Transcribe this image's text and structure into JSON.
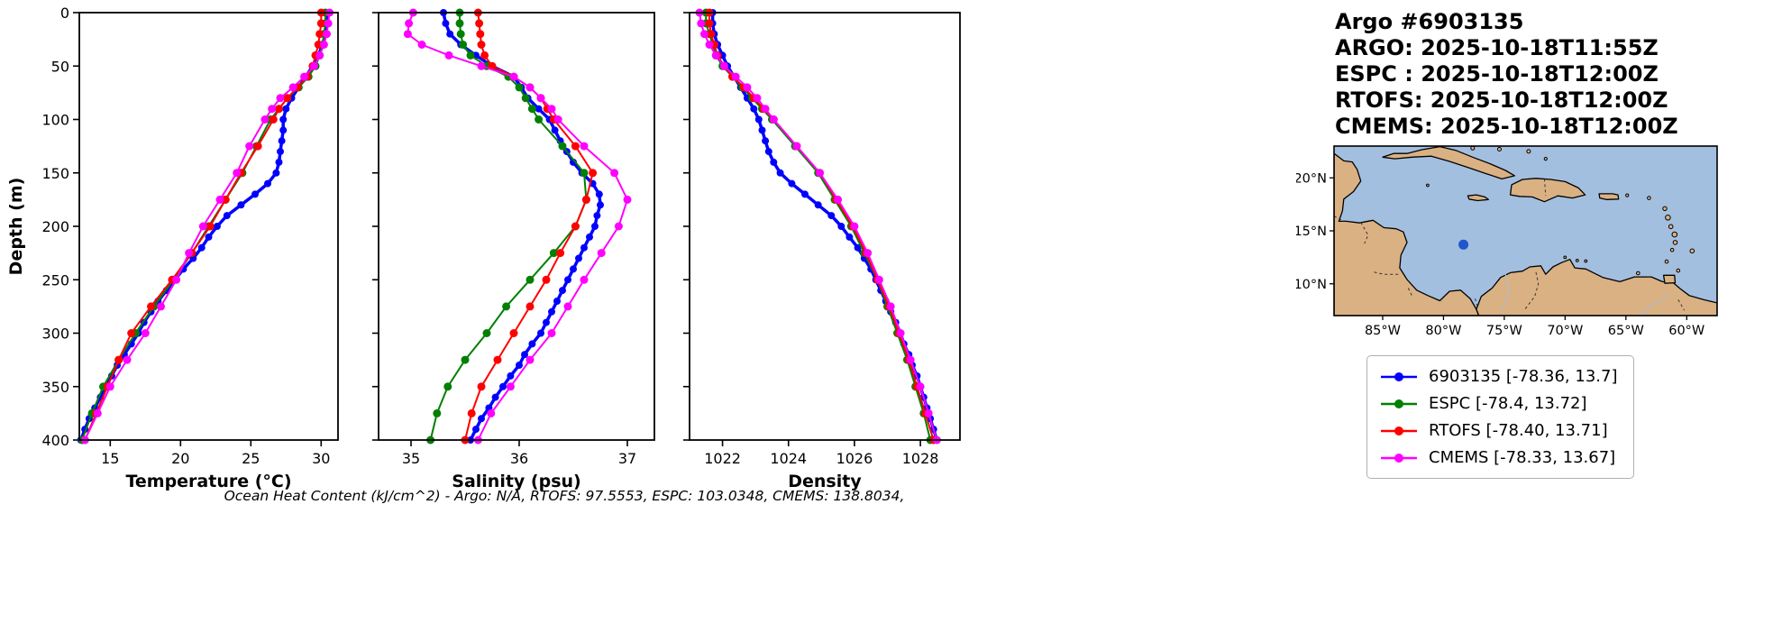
{
  "info": {
    "lines": [
      "Argo #6903135",
      "ARGO: 2025-10-18T11:55Z",
      "ESPC : 2025-10-18T12:00Z",
      "RTOFS: 2025-10-18T12:00Z",
      "CMEMS: 2025-10-18T12:00Z"
    ]
  },
  "footer": "Ocean Heat Content (kJ/cm^2) - Argo: N/A,  RTOFS: 97.5553,  ESPC: 103.0348,  CMEMS: 138.8034,",
  "legend": {
    "items": [
      {
        "label": "6903135 [-78.36, 13.7]",
        "color": "#0000ff"
      },
      {
        "label": "ESPC [-78.4, 13.72]",
        "color": "#008000"
      },
      {
        "label": "RTOFS [-78.40, 13.71]",
        "color": "#ff0000"
      },
      {
        "label": "CMEMS [-78.33, 13.67]",
        "color": "#ff00ff"
      }
    ]
  },
  "map": {
    "colors": {
      "ocean": "#a3bfe0",
      "land": "#dab183",
      "coast": "#000000",
      "point": "#2255cc"
    },
    "xticks": [
      {
        "label": "85°W",
        "lon": 85
      },
      {
        "label": "80°W",
        "lon": 80
      },
      {
        "label": "75°W",
        "lon": 75
      },
      {
        "label": "70°W",
        "lon": 70
      },
      {
        "label": "65°W",
        "lon": 65
      },
      {
        "label": "60°W",
        "lon": 60
      }
    ],
    "yticks": [
      {
        "label": "20°N",
        "lat": 20
      },
      {
        "label": "15°N",
        "lat": 15
      },
      {
        "label": "10°N",
        "lat": 10
      }
    ],
    "point": {
      "lon": -78.36,
      "lat": 13.7
    }
  },
  "chart_data": [
    {
      "type": "line",
      "xlabel": "Temperature (°C)",
      "ylabel": "Depth (m)",
      "xlim": [
        12.8,
        31.2
      ],
      "ylim": [
        0,
        400
      ],
      "y_inverted": true,
      "xticks": [
        15,
        20,
        25,
        30
      ],
      "yticks": [
        0,
        50,
        100,
        150,
        200,
        250,
        300,
        350,
        400
      ],
      "series": [
        {
          "name": "6903135",
          "color": "#0000ff",
          "linewidth": 3.5,
          "markersize": 4,
          "depths": [
            0,
            10,
            20,
            30,
            40,
            50,
            60,
            70,
            80,
            90,
            100,
            110,
            120,
            130,
            140,
            150,
            160,
            170,
            180,
            190,
            200,
            210,
            220,
            230,
            240,
            250,
            260,
            270,
            280,
            290,
            300,
            310,
            320,
            330,
            340,
            350,
            360,
            370,
            380,
            390,
            400
          ],
          "values": [
            30.4,
            30.4,
            30.3,
            30.1,
            29.8,
            29.4,
            28.9,
            28.4,
            27.9,
            27.5,
            27.3,
            27.3,
            27.2,
            27.1,
            27.0,
            26.8,
            26.2,
            25.3,
            24.3,
            23.3,
            22.6,
            22.0,
            21.5,
            20.9,
            20.2,
            19.6,
            19.0,
            18.4,
            17.9,
            17.4,
            17.0,
            16.5,
            16.0,
            15.5,
            15.1,
            14.7,
            14.3,
            13.9,
            13.5,
            13.2,
            12.9
          ]
        },
        {
          "name": "ESPC",
          "color": "#008000",
          "linewidth": 2,
          "markersize": 4.5,
          "depths": [
            0,
            10,
            20,
            30,
            40,
            50,
            60,
            70,
            80,
            90,
            100,
            125,
            150,
            175,
            200,
            225,
            250,
            275,
            300,
            325,
            350,
            375,
            400
          ],
          "values": [
            30.3,
            30.3,
            30.2,
            30.1,
            29.9,
            29.6,
            29.1,
            28.4,
            27.6,
            27.0,
            26.4,
            25.4,
            24.4,
            23.2,
            22.0,
            20.8,
            19.5,
            18.1,
            16.8,
            15.6,
            14.5,
            13.7,
            13.0
          ]
        },
        {
          "name": "RTOFS",
          "color": "#ff0000",
          "linewidth": 2,
          "markersize": 4.5,
          "depths": [
            0,
            10,
            20,
            30,
            40,
            50,
            60,
            70,
            80,
            90,
            100,
            125,
            150,
            175,
            200,
            225,
            250,
            275,
            300,
            325,
            350,
            375,
            400
          ],
          "values": [
            30.0,
            30.0,
            29.9,
            29.8,
            29.6,
            29.4,
            29.0,
            28.3,
            27.6,
            27.0,
            26.6,
            25.5,
            24.3,
            23.2,
            22.1,
            20.8,
            19.4,
            17.9,
            16.5,
            15.6,
            14.8,
            14.0,
            13.2
          ]
        },
        {
          "name": "CMEMS",
          "color": "#ff00ff",
          "linewidth": 2,
          "markersize": 4.5,
          "depths": [
            0,
            10,
            20,
            30,
            40,
            50,
            60,
            70,
            80,
            90,
            100,
            125,
            150,
            175,
            200,
            225,
            250,
            275,
            300,
            325,
            350,
            375,
            400
          ],
          "values": [
            30.6,
            30.5,
            30.4,
            30.2,
            29.9,
            29.5,
            28.8,
            28.0,
            27.1,
            26.5,
            26.0,
            24.9,
            24.0,
            22.8,
            21.6,
            20.6,
            19.7,
            18.6,
            17.5,
            16.2,
            15.0,
            14.1,
            13.2
          ]
        }
      ]
    },
    {
      "type": "line",
      "xlabel": "Salinity (psu)",
      "ylabel": "Depth (m)",
      "xlim": [
        34.7,
        37.25
      ],
      "ylim": [
        0,
        400
      ],
      "y_inverted": true,
      "xticks": [
        35,
        36,
        37
      ],
      "yticks": [
        0,
        50,
        100,
        150,
        200,
        250,
        300,
        350,
        400
      ],
      "series": [
        {
          "name": "6903135",
          "color": "#0000ff",
          "linewidth": 3.5,
          "markersize": 4,
          "depths": [
            0,
            10,
            20,
            30,
            40,
            50,
            60,
            70,
            80,
            90,
            100,
            110,
            120,
            130,
            140,
            150,
            160,
            170,
            180,
            190,
            200,
            210,
            220,
            230,
            240,
            250,
            260,
            270,
            280,
            290,
            300,
            310,
            320,
            330,
            340,
            350,
            360,
            370,
            380,
            390,
            400
          ],
          "values": [
            35.3,
            35.32,
            35.36,
            35.46,
            35.6,
            35.75,
            35.95,
            36.02,
            36.08,
            36.18,
            36.28,
            36.33,
            36.38,
            36.44,
            36.5,
            36.58,
            36.68,
            36.74,
            36.75,
            36.72,
            36.7,
            36.65,
            36.6,
            36.55,
            36.5,
            36.45,
            36.4,
            36.35,
            36.3,
            36.25,
            36.2,
            36.12,
            36.05,
            36.0,
            35.92,
            35.85,
            35.78,
            35.72,
            35.65,
            35.6,
            35.55
          ]
        },
        {
          "name": "ESPC",
          "color": "#008000",
          "linewidth": 2,
          "markersize": 4.5,
          "depths": [
            0,
            10,
            20,
            30,
            40,
            50,
            60,
            70,
            80,
            90,
            100,
            125,
            150,
            175,
            200,
            225,
            250,
            275,
            300,
            325,
            350,
            375,
            400
          ],
          "values": [
            35.45,
            35.45,
            35.46,
            35.48,
            35.55,
            35.7,
            35.9,
            36.0,
            36.06,
            36.12,
            36.18,
            36.4,
            36.6,
            36.62,
            36.52,
            36.32,
            36.1,
            35.88,
            35.7,
            35.5,
            35.34,
            35.24,
            35.18
          ]
        },
        {
          "name": "RTOFS",
          "color": "#ff0000",
          "linewidth": 2,
          "markersize": 4.5,
          "depths": [
            0,
            10,
            20,
            30,
            40,
            50,
            60,
            70,
            80,
            90,
            100,
            125,
            150,
            175,
            200,
            225,
            250,
            275,
            300,
            325,
            350,
            375,
            400
          ],
          "values": [
            35.62,
            35.63,
            35.64,
            35.65,
            35.68,
            35.75,
            35.95,
            36.1,
            36.2,
            36.26,
            36.32,
            36.52,
            36.68,
            36.62,
            36.52,
            36.38,
            36.25,
            36.1,
            35.95,
            35.8,
            35.65,
            35.56,
            35.5
          ]
        },
        {
          "name": "CMEMS",
          "color": "#ff00ff",
          "linewidth": 2,
          "markersize": 4.5,
          "depths": [
            0,
            10,
            20,
            30,
            40,
            50,
            60,
            70,
            80,
            90,
            100,
            125,
            150,
            175,
            200,
            225,
            250,
            275,
            300,
            325,
            350,
            375,
            400
          ],
          "values": [
            35.02,
            34.98,
            34.97,
            35.1,
            35.35,
            35.65,
            35.95,
            36.1,
            36.2,
            36.3,
            36.36,
            36.6,
            36.88,
            37.0,
            36.92,
            36.76,
            36.6,
            36.45,
            36.3,
            36.1,
            35.92,
            35.74,
            35.62
          ]
        }
      ]
    },
    {
      "type": "line",
      "xlabel": "Density",
      "ylabel": "Depth (m)",
      "xlim": [
        1021.0,
        1029.2
      ],
      "ylim": [
        0,
        400
      ],
      "y_inverted": true,
      "xticks": [
        1022,
        1024,
        1026,
        1028
      ],
      "yticks": [
        0,
        50,
        100,
        150,
        200,
        250,
        300,
        350,
        400
      ],
      "series": [
        {
          "name": "6903135",
          "color": "#0000ff",
          "linewidth": 3.5,
          "markersize": 4,
          "depths": [
            0,
            10,
            20,
            30,
            40,
            50,
            60,
            70,
            80,
            90,
            100,
            110,
            120,
            130,
            140,
            150,
            160,
            170,
            180,
            190,
            200,
            210,
            220,
            230,
            240,
            250,
            260,
            270,
            280,
            290,
            300,
            310,
            320,
            330,
            340,
            350,
            360,
            370,
            380,
            390,
            400
          ],
          "values": [
            1021.7,
            1021.7,
            1021.75,
            1021.85,
            1022.0,
            1022.15,
            1022.35,
            1022.55,
            1022.75,
            1022.95,
            1023.1,
            1023.2,
            1023.3,
            1023.4,
            1023.55,
            1023.75,
            1024.1,
            1024.5,
            1024.9,
            1025.3,
            1025.6,
            1025.85,
            1026.1,
            1026.3,
            1026.5,
            1026.65,
            1026.8,
            1026.95,
            1027.1,
            1027.25,
            1027.4,
            1027.5,
            1027.65,
            1027.75,
            1027.9,
            1028.0,
            1028.1,
            1028.2,
            1028.3,
            1028.4,
            1028.5
          ]
        },
        {
          "name": "ESPC",
          "color": "#008000",
          "linewidth": 2,
          "markersize": 4.5,
          "depths": [
            0,
            10,
            20,
            30,
            40,
            50,
            60,
            70,
            80,
            90,
            100,
            125,
            150,
            175,
            200,
            225,
            250,
            275,
            300,
            325,
            350,
            375,
            400
          ],
          "values": [
            1021.5,
            1021.5,
            1021.6,
            1021.7,
            1021.8,
            1022.0,
            1022.3,
            1022.6,
            1022.9,
            1023.2,
            1023.5,
            1024.2,
            1024.9,
            1025.4,
            1025.9,
            1026.3,
            1026.7,
            1027.0,
            1027.3,
            1027.6,
            1027.85,
            1028.1,
            1028.3
          ]
        },
        {
          "name": "RTOFS",
          "color": "#ff0000",
          "linewidth": 2,
          "markersize": 4.5,
          "depths": [
            0,
            10,
            20,
            30,
            40,
            50,
            60,
            70,
            80,
            90,
            100,
            125,
            150,
            175,
            200,
            225,
            250,
            275,
            300,
            325,
            350,
            375,
            400
          ],
          "values": [
            1021.6,
            1021.6,
            1021.65,
            1021.75,
            1021.85,
            1022.05,
            1022.3,
            1022.65,
            1022.95,
            1023.25,
            1023.55,
            1024.25,
            1024.95,
            1025.45,
            1025.95,
            1026.35,
            1026.7,
            1027.05,
            1027.35,
            1027.65,
            1027.9,
            1028.15,
            1028.4
          ]
        },
        {
          "name": "CMEMS",
          "color": "#ff00ff",
          "linewidth": 2,
          "markersize": 4.5,
          "depths": [
            0,
            10,
            20,
            30,
            40,
            50,
            60,
            70,
            80,
            90,
            100,
            125,
            150,
            175,
            200,
            225,
            250,
            275,
            300,
            325,
            350,
            375,
            400
          ],
          "values": [
            1021.3,
            1021.35,
            1021.45,
            1021.6,
            1021.8,
            1022.05,
            1022.4,
            1022.75,
            1023.05,
            1023.3,
            1023.55,
            1024.25,
            1024.95,
            1025.5,
            1026.0,
            1026.4,
            1026.75,
            1027.1,
            1027.4,
            1027.7,
            1028.0,
            1028.25,
            1028.5
          ]
        }
      ]
    }
  ]
}
